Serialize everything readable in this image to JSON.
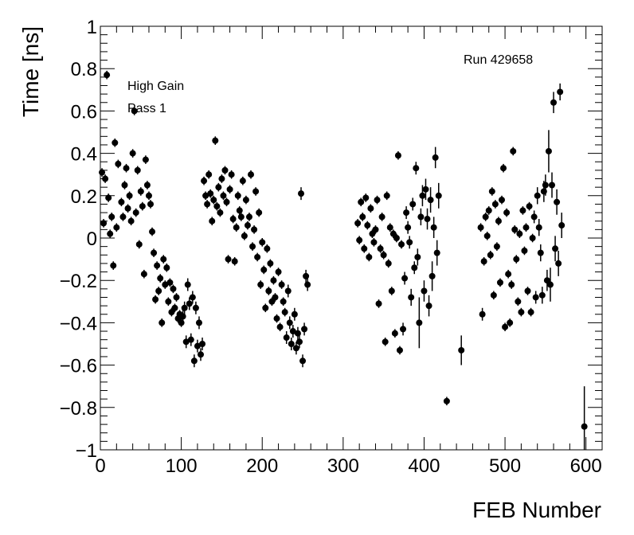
{
  "chart_data": {
    "type": "scatter",
    "xlabel": "FEB Number",
    "ylabel": "Time [ns]",
    "xlim": [
      0,
      620
    ],
    "ylim": [
      -1,
      1
    ],
    "x_ticks": [
      0,
      100,
      200,
      300,
      400,
      500,
      600
    ],
    "y_ticks": [
      -1,
      -0.8,
      -0.6,
      -0.4,
      -0.2,
      0,
      0.2,
      0.4,
      0.6,
      0.8,
      1
    ],
    "annotations": [
      "Run 429658",
      "High Gain",
      "Pass 1"
    ],
    "marker_color": "#000000",
    "grid": false,
    "points": [
      {
        "x": 2,
        "y": 0.31,
        "err": 0.02
      },
      {
        "x": 4,
        "y": 0.07,
        "err": 0.02
      },
      {
        "x": 6,
        "y": 0.28,
        "err": 0.02
      },
      {
        "x": 8,
        "y": 0.77,
        "err": 0.02
      },
      {
        "x": 10,
        "y": 0.19,
        "err": 0.02
      },
      {
        "x": 12,
        "y": 0.02,
        "err": 0.02
      },
      {
        "x": 14,
        "y": 0.1,
        "err": 0.02
      },
      {
        "x": 16,
        "y": -0.13,
        "err": 0.02
      },
      {
        "x": 18,
        "y": 0.45,
        "err": 0.02
      },
      {
        "x": 20,
        "y": 0.05,
        "err": 0.02
      },
      {
        "x": 22,
        "y": 0.35,
        "err": 0.02
      },
      {
        "x": 26,
        "y": 0.17,
        "err": 0.02
      },
      {
        "x": 28,
        "y": 0.1,
        "err": 0.02
      },
      {
        "x": 30,
        "y": 0.25,
        "err": 0.02
      },
      {
        "x": 32,
        "y": 0.33,
        "err": 0.02
      },
      {
        "x": 34,
        "y": 0.14,
        "err": 0.02
      },
      {
        "x": 36,
        "y": 0.2,
        "err": 0.02
      },
      {
        "x": 38,
        "y": 0.08,
        "err": 0.02
      },
      {
        "x": 40,
        "y": 0.4,
        "err": 0.02
      },
      {
        "x": 42,
        "y": 0.6,
        "err": 0.02
      },
      {
        "x": 44,
        "y": 0.12,
        "err": 0.02
      },
      {
        "x": 46,
        "y": 0.32,
        "err": 0.02
      },
      {
        "x": 48,
        "y": -0.03,
        "err": 0.02
      },
      {
        "x": 50,
        "y": 0.22,
        "err": 0.02
      },
      {
        "x": 52,
        "y": 0.15,
        "err": 0.02
      },
      {
        "x": 54,
        "y": -0.17,
        "err": 0.02
      },
      {
        "x": 56,
        "y": 0.37,
        "err": 0.02
      },
      {
        "x": 58,
        "y": 0.25,
        "err": 0.02
      },
      {
        "x": 60,
        "y": 0.2,
        "err": 0.02
      },
      {
        "x": 62,
        "y": 0.16,
        "err": 0.02
      },
      {
        "x": 64,
        "y": 0.03,
        "err": 0.02
      },
      {
        "x": 66,
        "y": -0.07,
        "err": 0.02
      },
      {
        "x": 68,
        "y": -0.29,
        "err": 0.02
      },
      {
        "x": 70,
        "y": -0.13,
        "err": 0.02
      },
      {
        "x": 72,
        "y": -0.25,
        "err": 0.02
      },
      {
        "x": 74,
        "y": -0.19,
        "err": 0.02
      },
      {
        "x": 76,
        "y": -0.4,
        "err": 0.02
      },
      {
        "x": 78,
        "y": -0.1,
        "err": 0.02
      },
      {
        "x": 80,
        "y": -0.22,
        "err": 0.02
      },
      {
        "x": 82,
        "y": -0.14,
        "err": 0.02
      },
      {
        "x": 84,
        "y": -0.3,
        "err": 0.02
      },
      {
        "x": 86,
        "y": -0.21,
        "err": 0.02
      },
      {
        "x": 88,
        "y": -0.35,
        "err": 0.02
      },
      {
        "x": 90,
        "y": -0.24,
        "err": 0.02
      },
      {
        "x": 92,
        "y": -0.33,
        "err": 0.02
      },
      {
        "x": 94,
        "y": -0.28,
        "err": 0.02
      },
      {
        "x": 96,
        "y": -0.38,
        "err": 0.02
      },
      {
        "x": 98,
        "y": -0.36,
        "err": 0.02
      },
      {
        "x": 100,
        "y": -0.4,
        "err": 0.02
      },
      {
        "x": 102,
        "y": -0.37,
        "err": 0.03
      },
      {
        "x": 104,
        "y": -0.33,
        "err": 0.03
      },
      {
        "x": 106,
        "y": -0.49,
        "err": 0.03
      },
      {
        "x": 108,
        "y": -0.22,
        "err": 0.03
      },
      {
        "x": 110,
        "y": -0.31,
        "err": 0.03
      },
      {
        "x": 112,
        "y": -0.48,
        "err": 0.03
      },
      {
        "x": 114,
        "y": -0.28,
        "err": 0.03
      },
      {
        "x": 116,
        "y": -0.58,
        "err": 0.03
      },
      {
        "x": 118,
        "y": -0.33,
        "err": 0.03
      },
      {
        "x": 120,
        "y": -0.51,
        "err": 0.03
      },
      {
        "x": 122,
        "y": -0.4,
        "err": 0.03
      },
      {
        "x": 124,
        "y": -0.55,
        "err": 0.03
      },
      {
        "x": 126,
        "y": -0.5,
        "err": 0.03
      },
      {
        "x": 128,
        "y": 0.27,
        "err": 0.02
      },
      {
        "x": 130,
        "y": 0.2,
        "err": 0.02
      },
      {
        "x": 132,
        "y": 0.16,
        "err": 0.02
      },
      {
        "x": 134,
        "y": 0.3,
        "err": 0.02
      },
      {
        "x": 136,
        "y": 0.21,
        "err": 0.02
      },
      {
        "x": 138,
        "y": 0.08,
        "err": 0.02
      },
      {
        "x": 140,
        "y": 0.18,
        "err": 0.02
      },
      {
        "x": 142,
        "y": 0.46,
        "err": 0.02
      },
      {
        "x": 144,
        "y": 0.15,
        "err": 0.02
      },
      {
        "x": 146,
        "y": 0.24,
        "err": 0.02
      },
      {
        "x": 148,
        "y": 0.12,
        "err": 0.02
      },
      {
        "x": 150,
        "y": 0.28,
        "err": 0.02
      },
      {
        "x": 152,
        "y": 0.2,
        "err": 0.02
      },
      {
        "x": 154,
        "y": 0.32,
        "err": 0.02
      },
      {
        "x": 156,
        "y": 0.17,
        "err": 0.02
      },
      {
        "x": 158,
        "y": -0.1,
        "err": 0.02
      },
      {
        "x": 160,
        "y": 0.23,
        "err": 0.02
      },
      {
        "x": 162,
        "y": 0.3,
        "err": 0.02
      },
      {
        "x": 164,
        "y": 0.09,
        "err": 0.02
      },
      {
        "x": 166,
        "y": -0.11,
        "err": 0.02
      },
      {
        "x": 168,
        "y": 0.05,
        "err": 0.02
      },
      {
        "x": 170,
        "y": 0.2,
        "err": 0.02
      },
      {
        "x": 172,
        "y": 0.13,
        "err": 0.02
      },
      {
        "x": 174,
        "y": 0.1,
        "err": 0.02
      },
      {
        "x": 176,
        "y": 0.27,
        "err": 0.02
      },
      {
        "x": 178,
        "y": 0.01,
        "err": 0.02
      },
      {
        "x": 180,
        "y": 0.18,
        "err": 0.02
      },
      {
        "x": 182,
        "y": 0.06,
        "err": 0.02
      },
      {
        "x": 184,
        "y": 0.1,
        "err": 0.02
      },
      {
        "x": 186,
        "y": 0.3,
        "err": 0.02
      },
      {
        "x": 188,
        "y": -0.04,
        "err": 0.02
      },
      {
        "x": 190,
        "y": 0.04,
        "err": 0.02
      },
      {
        "x": 192,
        "y": 0.22,
        "err": 0.02
      },
      {
        "x": 194,
        "y": -0.09,
        "err": 0.02
      },
      {
        "x": 196,
        "y": 0.12,
        "err": 0.02
      },
      {
        "x": 198,
        "y": -0.22,
        "err": 0.02
      },
      {
        "x": 200,
        "y": -0.02,
        "err": 0.02
      },
      {
        "x": 202,
        "y": -0.15,
        "err": 0.02
      },
      {
        "x": 204,
        "y": -0.33,
        "err": 0.02
      },
      {
        "x": 206,
        "y": -0.05,
        "err": 0.02
      },
      {
        "x": 208,
        "y": -0.25,
        "err": 0.02
      },
      {
        "x": 210,
        "y": -0.12,
        "err": 0.02
      },
      {
        "x": 212,
        "y": -0.3,
        "err": 0.02
      },
      {
        "x": 214,
        "y": -0.2,
        "err": 0.02
      },
      {
        "x": 216,
        "y": -0.28,
        "err": 0.02
      },
      {
        "x": 218,
        "y": -0.38,
        "err": 0.02
      },
      {
        "x": 220,
        "y": -0.16,
        "err": 0.02
      },
      {
        "x": 222,
        "y": -0.42,
        "err": 0.02
      },
      {
        "x": 224,
        "y": -0.22,
        "err": 0.02
      },
      {
        "x": 226,
        "y": -0.3,
        "err": 0.02
      },
      {
        "x": 228,
        "y": -0.35,
        "err": 0.02
      },
      {
        "x": 230,
        "y": -0.47,
        "err": 0.03
      },
      {
        "x": 232,
        "y": -0.25,
        "err": 0.03
      },
      {
        "x": 234,
        "y": -0.4,
        "err": 0.03
      },
      {
        "x": 236,
        "y": -0.5,
        "err": 0.03
      },
      {
        "x": 238,
        "y": -0.44,
        "err": 0.03
      },
      {
        "x": 240,
        "y": -0.36,
        "err": 0.03
      },
      {
        "x": 242,
        "y": -0.52,
        "err": 0.03
      },
      {
        "x": 244,
        "y": -0.45,
        "err": 0.03
      },
      {
        "x": 246,
        "y": -0.49,
        "err": 0.03
      },
      {
        "x": 248,
        "y": 0.21,
        "err": 0.03
      },
      {
        "x": 250,
        "y": -0.58,
        "err": 0.03
      },
      {
        "x": 252,
        "y": -0.43,
        "err": 0.03
      },
      {
        "x": 254,
        "y": -0.18,
        "err": 0.03
      },
      {
        "x": 256,
        "y": -0.22,
        "err": 0.03
      },
      {
        "x": 318,
        "y": 0.07,
        "err": 0.02
      },
      {
        "x": 320,
        "y": -0.01,
        "err": 0.02
      },
      {
        "x": 322,
        "y": 0.17,
        "err": 0.02
      },
      {
        "x": 324,
        "y": 0.1,
        "err": 0.02
      },
      {
        "x": 326,
        "y": -0.05,
        "err": 0.02
      },
      {
        "x": 328,
        "y": 0.19,
        "err": 0.02
      },
      {
        "x": 330,
        "y": 0.06,
        "err": 0.02
      },
      {
        "x": 332,
        "y": -0.09,
        "err": 0.02
      },
      {
        "x": 334,
        "y": 0.14,
        "err": 0.02
      },
      {
        "x": 336,
        "y": 0.02,
        "err": 0.02
      },
      {
        "x": 338,
        "y": -0.02,
        "err": 0.02
      },
      {
        "x": 340,
        "y": 0.04,
        "err": 0.02
      },
      {
        "x": 342,
        "y": 0.18,
        "err": 0.02
      },
      {
        "x": 344,
        "y": -0.31,
        "err": 0.02
      },
      {
        "x": 346,
        "y": -0.05,
        "err": 0.02
      },
      {
        "x": 348,
        "y": 0.1,
        "err": 0.02
      },
      {
        "x": 350,
        "y": -0.08,
        "err": 0.02
      },
      {
        "x": 352,
        "y": -0.49,
        "err": 0.02
      },
      {
        "x": 354,
        "y": 0.2,
        "err": 0.02
      },
      {
        "x": 356,
        "y": -0.12,
        "err": 0.02
      },
      {
        "x": 358,
        "y": 0.05,
        "err": 0.02
      },
      {
        "x": 360,
        "y": -0.25,
        "err": 0.02
      },
      {
        "x": 362,
        "y": 0.02,
        "err": 0.02
      },
      {
        "x": 364,
        "y": -0.45,
        "err": 0.02
      },
      {
        "x": 366,
        "y": 0.0,
        "err": 0.02
      },
      {
        "x": 368,
        "y": 0.39,
        "err": 0.02
      },
      {
        "x": 370,
        "y": -0.53,
        "err": 0.02
      },
      {
        "x": 372,
        "y": -0.03,
        "err": 0.02
      },
      {
        "x": 374,
        "y": -0.43,
        "err": 0.03
      },
      {
        "x": 376,
        "y": -0.19,
        "err": 0.03
      },
      {
        "x": 378,
        "y": 0.12,
        "err": 0.03
      },
      {
        "x": 380,
        "y": 0.05,
        "err": 0.03
      },
      {
        "x": 382,
        "y": -0.02,
        "err": 0.03
      },
      {
        "x": 384,
        "y": -0.28,
        "err": 0.04
      },
      {
        "x": 386,
        "y": 0.16,
        "err": 0.03
      },
      {
        "x": 388,
        "y": -0.14,
        "err": 0.03
      },
      {
        "x": 390,
        "y": 0.33,
        "err": 0.03
      },
      {
        "x": 392,
        "y": -0.09,
        "err": 0.04
      },
      {
        "x": 394,
        "y": -0.4,
        "err": 0.12
      },
      {
        "x": 396,
        "y": 0.1,
        "err": 0.04
      },
      {
        "x": 398,
        "y": 0.2,
        "err": 0.05
      },
      {
        "x": 400,
        "y": -0.25,
        "err": 0.05
      },
      {
        "x": 402,
        "y": 0.23,
        "err": 0.05
      },
      {
        "x": 404,
        "y": 0.09,
        "err": 0.05
      },
      {
        "x": 406,
        "y": -0.32,
        "err": 0.05
      },
      {
        "x": 408,
        "y": 0.18,
        "err": 0.06
      },
      {
        "x": 410,
        "y": -0.18,
        "err": 0.07
      },
      {
        "x": 412,
        "y": 0.05,
        "err": 0.05
      },
      {
        "x": 414,
        "y": 0.38,
        "err": 0.05
      },
      {
        "x": 416,
        "y": -0.07,
        "err": 0.06
      },
      {
        "x": 418,
        "y": 0.2,
        "err": 0.06
      },
      {
        "x": 428,
        "y": -0.77,
        "err": 0.02
      },
      {
        "x": 446,
        "y": -0.53,
        "err": 0.07
      },
      {
        "x": 470,
        "y": 0.05,
        "err": 0.02
      },
      {
        "x": 472,
        "y": -0.36,
        "err": 0.03
      },
      {
        "x": 474,
        "y": -0.11,
        "err": 0.02
      },
      {
        "x": 476,
        "y": 0.1,
        "err": 0.02
      },
      {
        "x": 478,
        "y": 0.01,
        "err": 0.02
      },
      {
        "x": 480,
        "y": 0.13,
        "err": 0.02
      },
      {
        "x": 482,
        "y": -0.08,
        "err": 0.02
      },
      {
        "x": 484,
        "y": 0.22,
        "err": 0.02
      },
      {
        "x": 486,
        "y": -0.27,
        "err": 0.02
      },
      {
        "x": 488,
        "y": 0.16,
        "err": 0.02
      },
      {
        "x": 490,
        "y": -0.04,
        "err": 0.02
      },
      {
        "x": 492,
        "y": 0.08,
        "err": 0.02
      },
      {
        "x": 494,
        "y": -0.21,
        "err": 0.02
      },
      {
        "x": 496,
        "y": 0.18,
        "err": 0.02
      },
      {
        "x": 498,
        "y": 0.33,
        "err": 0.02
      },
      {
        "x": 500,
        "y": -0.42,
        "err": 0.02
      },
      {
        "x": 502,
        "y": 0.12,
        "err": 0.02
      },
      {
        "x": 504,
        "y": -0.17,
        "err": 0.02
      },
      {
        "x": 506,
        "y": -0.4,
        "err": 0.02
      },
      {
        "x": 508,
        "y": -0.22,
        "err": 0.02
      },
      {
        "x": 510,
        "y": 0.41,
        "err": 0.02
      },
      {
        "x": 512,
        "y": 0.04,
        "err": 0.02
      },
      {
        "x": 514,
        "y": -0.1,
        "err": 0.02
      },
      {
        "x": 516,
        "y": -0.3,
        "err": 0.02
      },
      {
        "x": 518,
        "y": 0.02,
        "err": 0.02
      },
      {
        "x": 520,
        "y": -0.35,
        "err": 0.02
      },
      {
        "x": 522,
        "y": 0.13,
        "err": 0.02
      },
      {
        "x": 524,
        "y": -0.06,
        "err": 0.02
      },
      {
        "x": 526,
        "y": 0.05,
        "err": 0.02
      },
      {
        "x": 528,
        "y": -0.25,
        "err": 0.02
      },
      {
        "x": 530,
        "y": 0.15,
        "err": 0.02
      },
      {
        "x": 532,
        "y": -0.35,
        "err": 0.02
      },
      {
        "x": 534,
        "y": 0.0,
        "err": 0.02
      },
      {
        "x": 536,
        "y": 0.1,
        "err": 0.03
      },
      {
        "x": 538,
        "y": -0.28,
        "err": 0.03
      },
      {
        "x": 540,
        "y": 0.2,
        "err": 0.04
      },
      {
        "x": 542,
        "y": 0.05,
        "err": 0.04
      },
      {
        "x": 544,
        "y": -0.07,
        "err": 0.04
      },
      {
        "x": 546,
        "y": -0.27,
        "err": 0.04
      },
      {
        "x": 548,
        "y": 0.22,
        "err": 0.05
      },
      {
        "x": 550,
        "y": 0.25,
        "err": 0.05
      },
      {
        "x": 552,
        "y": -0.2,
        "err": 0.05
      },
      {
        "x": 554,
        "y": 0.41,
        "err": 0.1
      },
      {
        "x": 556,
        "y": -0.22,
        "err": 0.08
      },
      {
        "x": 558,
        "y": 0.25,
        "err": 0.06
      },
      {
        "x": 560,
        "y": 0.64,
        "err": 0.05
      },
      {
        "x": 562,
        "y": -0.05,
        "err": 0.06
      },
      {
        "x": 564,
        "y": 0.17,
        "err": 0.06
      },
      {
        "x": 566,
        "y": -0.12,
        "err": 0.06
      },
      {
        "x": 568,
        "y": 0.69,
        "err": 0.04
      },
      {
        "x": 570,
        "y": 0.06,
        "err": 0.06
      },
      {
        "x": 598,
        "y": -0.89,
        "err": 0.19
      }
    ]
  }
}
